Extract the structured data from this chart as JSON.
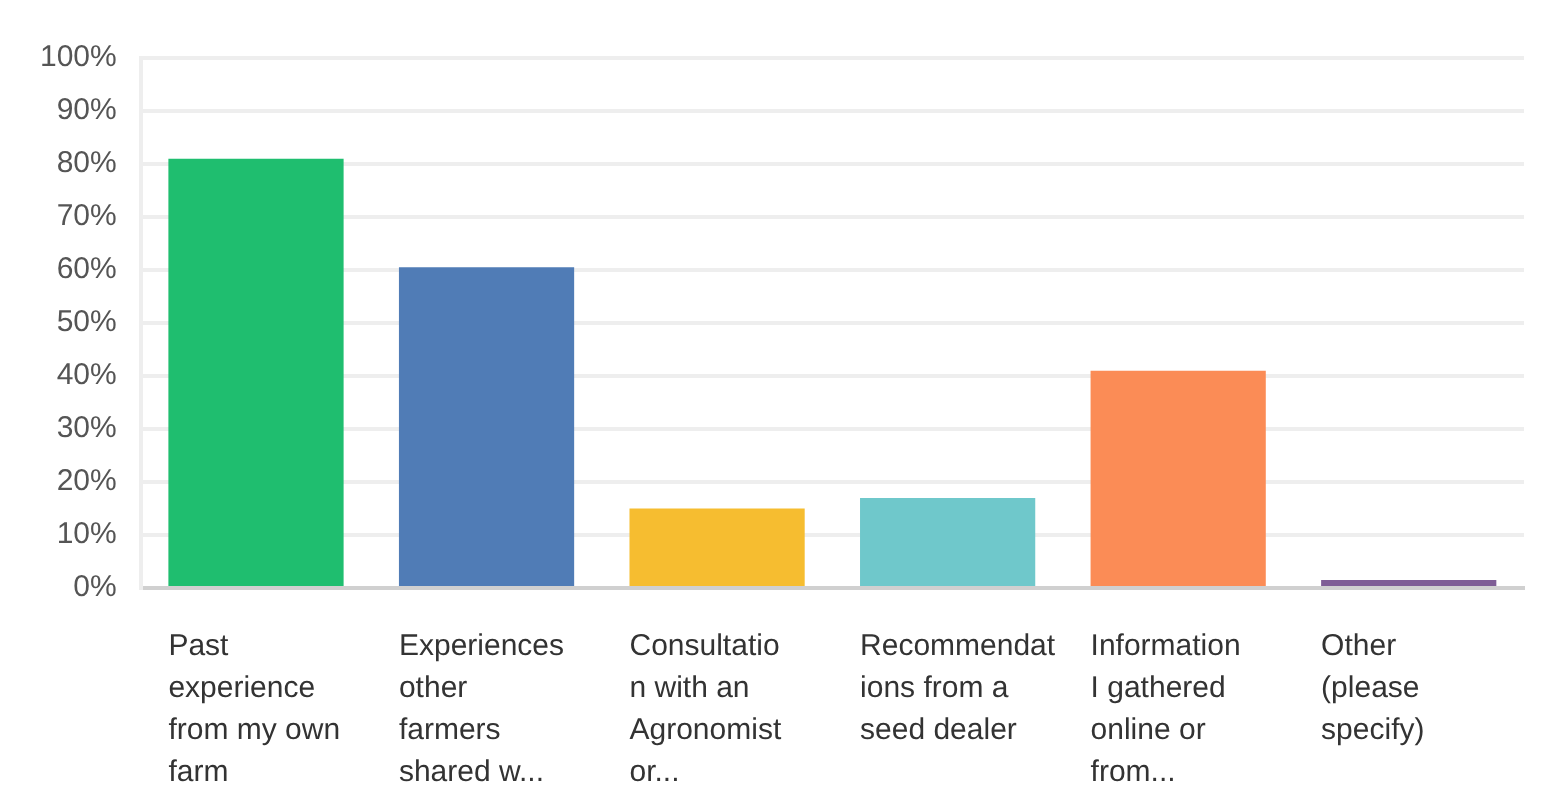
{
  "chart_data": {
    "type": "bar",
    "categories": [
      "Past\nexperience\nfrom my own\nfarm",
      "Experiences\nother\nfarmers\nshared w...",
      "Consultatio\nn with an\nAgronomist\nor...",
      "Recommendat\nions from a\nseed dealer",
      "Information\nI gathered\nonline or\nfrom...",
      "Other\n(please\nspecify)"
    ],
    "values": [
      81,
      60.5,
      15,
      17,
      41,
      1.5
    ],
    "colors": [
      "#1fbe6f",
      "#507cb6",
      "#f6bd30",
      "#6fc8cb",
      "#fb8c56",
      "#7f5e96"
    ],
    "ylim": [
      0,
      100
    ],
    "yticks": [
      {
        "value": 0,
        "label": "0%"
      },
      {
        "value": 10,
        "label": "10%"
      },
      {
        "value": 20,
        "label": "20%"
      },
      {
        "value": 30,
        "label": "30%"
      },
      {
        "value": 40,
        "label": "40%"
      },
      {
        "value": 50,
        "label": "50%"
      },
      {
        "value": 60,
        "label": "60%"
      },
      {
        "value": 70,
        "label": "70%"
      },
      {
        "value": 80,
        "label": "80%"
      },
      {
        "value": 90,
        "label": "90%"
      },
      {
        "value": 100,
        "label": "100%"
      }
    ],
    "grid": "y",
    "legend": false
  }
}
